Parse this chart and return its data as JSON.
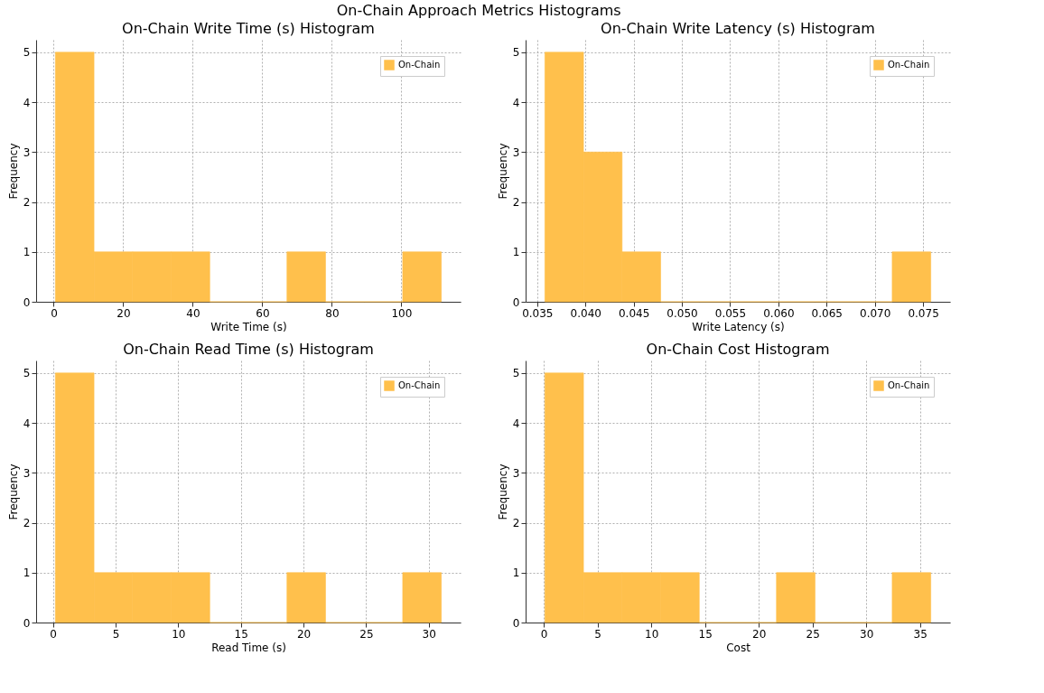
{
  "chart_data": [
    {
      "type": "histogram",
      "title": "On-Chain Write Time (s) Histogram",
      "xlabel": "Write Time (s)",
      "ylabel": "Frequency",
      "annotations": [
        "On-Chain Approach Metrics Histograms"
      ],
      "bins": [
        0.5,
        11.6,
        22.7,
        33.8,
        44.9,
        56.0,
        67.1,
        78.2,
        89.3,
        100.4,
        111.5
      ],
      "series": [
        {
          "name": "On-Chain",
          "color": "#ffc04c",
          "values": [
            5,
            1,
            1,
            1,
            0,
            0,
            1,
            0,
            0,
            1
          ]
        }
      ],
      "xlim": [
        -5.05,
        117.05
      ],
      "xticks": [
        0,
        20,
        40,
        60,
        80,
        100
      ],
      "ylim": [
        0,
        5.25
      ],
      "yticks": [
        0,
        1,
        2,
        3,
        4,
        5
      ],
      "grid": true,
      "legend": "top right"
    },
    {
      "type": "histogram",
      "title": "On-Chain Write Latency (s) Histogram",
      "xlabel": "Write Latency (s)",
      "ylabel": "Frequency",
      "bins": [
        0.0358,
        0.0398,
        0.0438,
        0.0478,
        0.0518,
        0.0558,
        0.0598,
        0.0638,
        0.0678,
        0.0718,
        0.0758
      ],
      "series": [
        {
          "name": "On-Chain",
          "color": "#ffc04c",
          "values": [
            5,
            3,
            1,
            0,
            0,
            0,
            0,
            0,
            0,
            1
          ]
        }
      ],
      "xlim": [
        0.0338,
        0.0778
      ],
      "xticks": [
        {
          "value": 0.035,
          "label": "0.035"
        },
        {
          "value": 0.04,
          "label": "0.040"
        },
        {
          "value": 0.045,
          "label": "0.045"
        },
        {
          "value": 0.05,
          "label": "0.050"
        },
        {
          "value": 0.055,
          "label": "0.055"
        },
        {
          "value": 0.06,
          "label": "0.060"
        },
        {
          "value": 0.065,
          "label": "0.065"
        },
        {
          "value": 0.07,
          "label": "0.070"
        },
        {
          "value": 0.075,
          "label": "0.075"
        }
      ],
      "ylim": [
        0,
        5.25
      ],
      "yticks": [
        0,
        1,
        2,
        3,
        4,
        5
      ],
      "grid": true,
      "legend": "top right"
    },
    {
      "type": "histogram",
      "title": "On-Chain Read Time (s) Histogram",
      "xlabel": "Read Time (s)",
      "ylabel": "Frequency",
      "bins": [
        0.2,
        3.28,
        6.36,
        9.44,
        12.52,
        15.6,
        18.68,
        21.76,
        24.84,
        27.92,
        31.0
      ],
      "series": [
        {
          "name": "On-Chain",
          "color": "#ffc04c",
          "values": [
            5,
            1,
            1,
            1,
            0,
            0,
            1,
            0,
            0,
            1
          ]
        }
      ],
      "xlim": [
        -1.34,
        32.54
      ],
      "xticks": [
        0,
        5,
        10,
        15,
        20,
        25,
        30
      ],
      "ylim": [
        0,
        5.25
      ],
      "yticks": [
        0,
        1,
        2,
        3,
        4,
        5
      ],
      "grid": true,
      "legend": "top right"
    },
    {
      "type": "histogram",
      "title": "On-Chain Cost Histogram",
      "xlabel": "Cost",
      "ylabel": "Frequency",
      "bins": [
        0.1,
        3.69,
        7.28,
        10.87,
        14.46,
        18.05,
        21.64,
        25.23,
        28.82,
        32.41,
        36.0
      ],
      "series": [
        {
          "name": "On-Chain",
          "color": "#ffc04c",
          "values": [
            5,
            1,
            1,
            1,
            0,
            0,
            1,
            0,
            0,
            1
          ]
        }
      ],
      "xlim": [
        -1.695,
        37.795
      ],
      "xticks": [
        0,
        5,
        10,
        15,
        20,
        25,
        30,
        35
      ],
      "ylim": [
        0,
        5.25
      ],
      "yticks": [
        0,
        1,
        2,
        3,
        4,
        5
      ],
      "grid": true,
      "legend": "top right"
    }
  ]
}
